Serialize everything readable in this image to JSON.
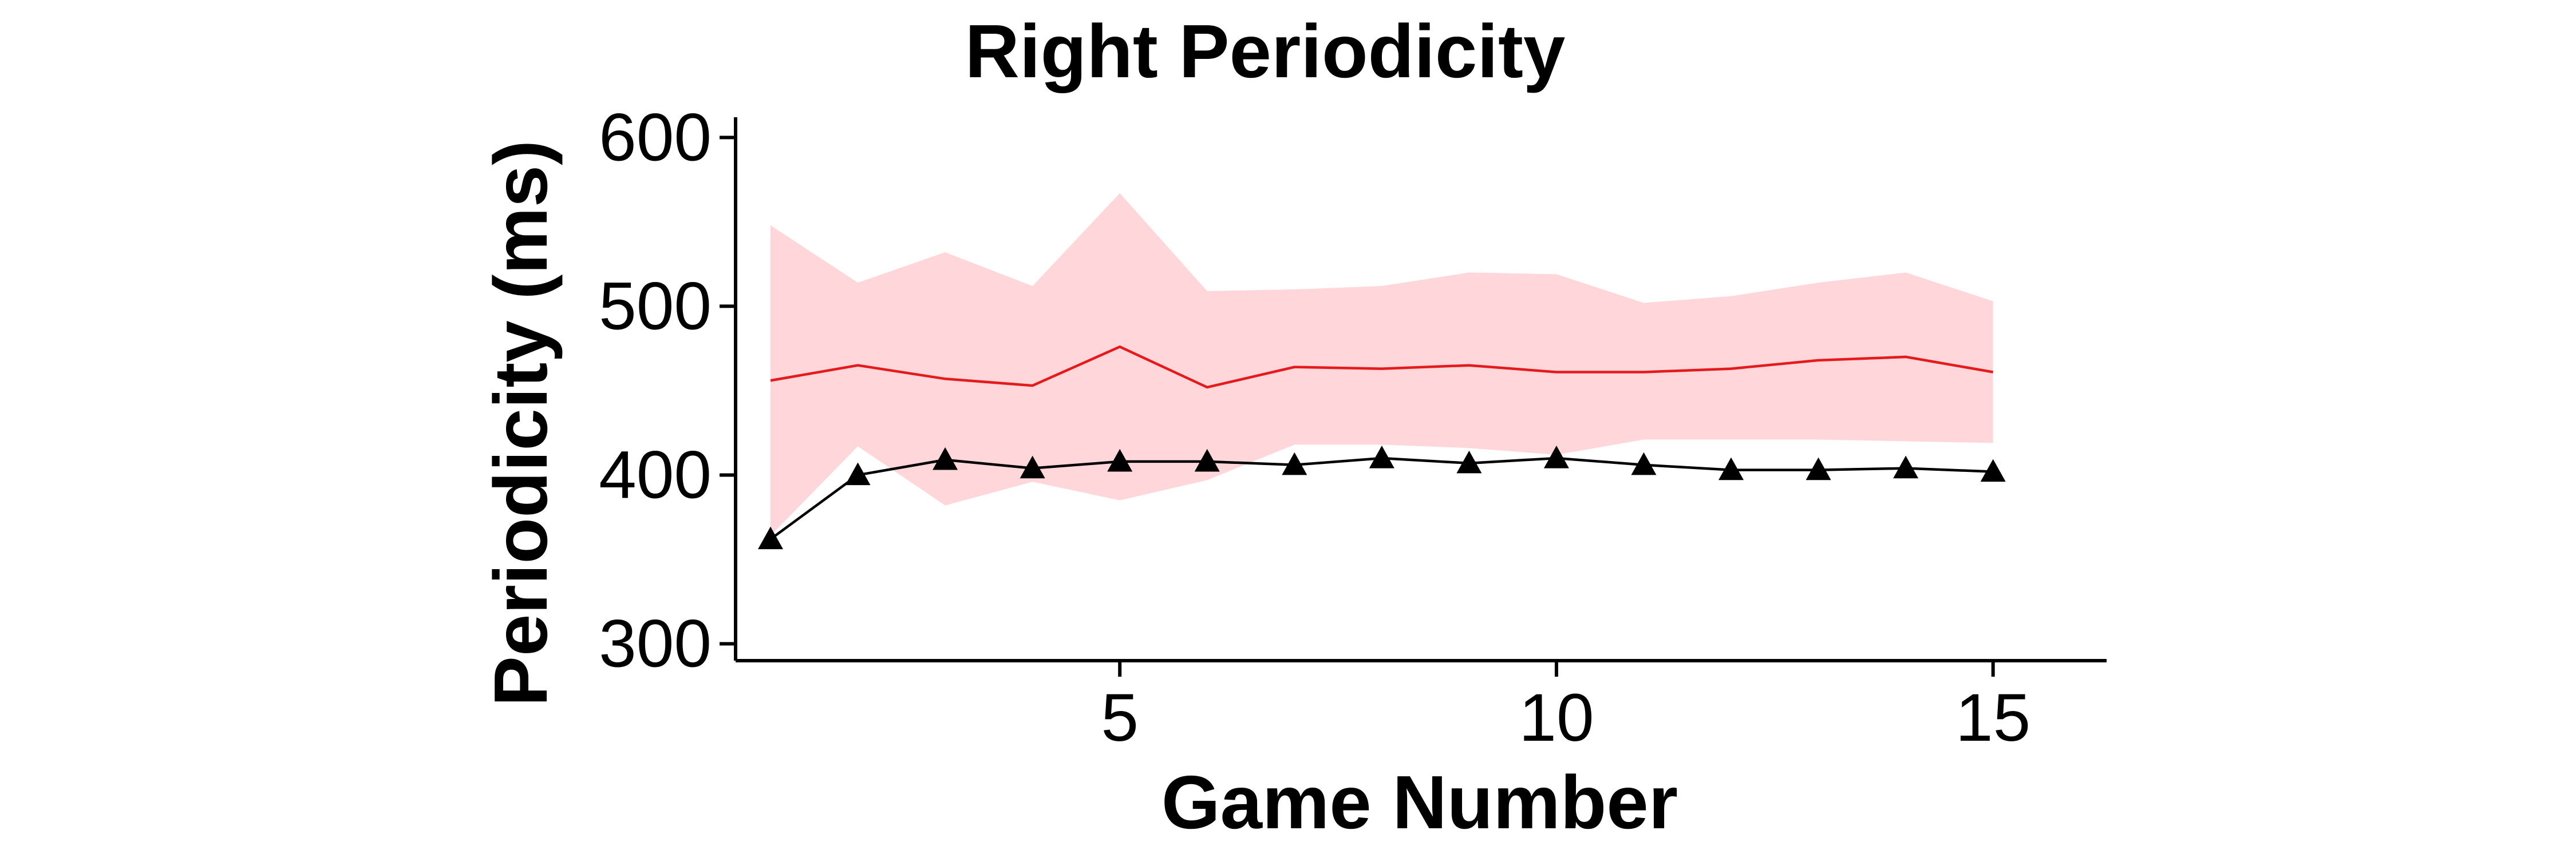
{
  "chart_data": {
    "type": "line",
    "title": "Right Periodicity",
    "xlabel": "Game Number",
    "ylabel": "Periodicity (ms)",
    "xlim": [
      0.6,
      16.3
    ],
    "ylim": [
      290,
      612
    ],
    "x_ticks": [
      5,
      10,
      15
    ],
    "y_ticks": [
      300,
      400,
      500,
      600
    ],
    "grid": false,
    "x": [
      1,
      2,
      3,
      4,
      5,
      6,
      7,
      8,
      9,
      10,
      11,
      12,
      13,
      14,
      15
    ],
    "band": {
      "color": "#ffd6d9",
      "lower": [
        364,
        417,
        382,
        396,
        385,
        397,
        418,
        418,
        416,
        412,
        421,
        421,
        421,
        420,
        419
      ],
      "upper": [
        548,
        514,
        532,
        512,
        567,
        509,
        510,
        512,
        520,
        519,
        502,
        506,
        514,
        520,
        503
      ]
    },
    "series": [
      {
        "color": "#e41a1c",
        "marker": "none",
        "values": [
          456,
          465,
          457,
          453,
          476,
          452,
          464,
          463,
          465,
          461,
          461,
          463,
          468,
          470,
          461
        ]
      },
      {
        "color": "#000000",
        "marker": "triangle",
        "values": [
          362,
          400,
          409,
          404,
          408,
          408,
          406,
          410,
          407,
          410,
          406,
          403,
          403,
          404,
          402
        ]
      }
    ]
  }
}
